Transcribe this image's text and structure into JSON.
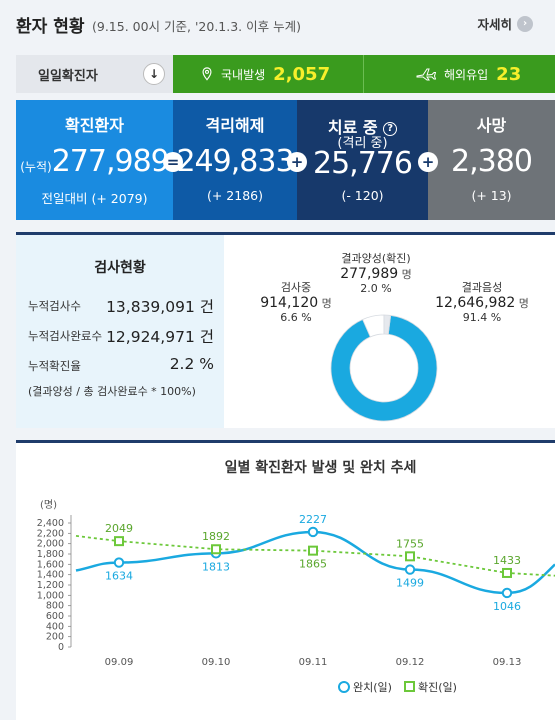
{
  "header": {
    "title": "환자 현황",
    "subtitle": "(9.15. 00시 기준, '20.1.3. 이후 누계)",
    "detail_label": "자세히"
  },
  "daily": {
    "label": "일일확진자",
    "domestic_label": "국내발생",
    "domestic_value": "2,057",
    "overseas_label": "해외유입",
    "overseas_value": "23"
  },
  "tiles": [
    {
      "label": "확진환자",
      "prefix": "(누적)",
      "value": "277,989",
      "delta": "전일대비 (+ 2079)"
    },
    {
      "label": "격리해제",
      "value": "249,833",
      "delta": "(+ 2186)"
    },
    {
      "label": "치료 중",
      "label2": "(격리 중)",
      "value": "25,776",
      "delta": "(- 120)"
    },
    {
      "label": "사망",
      "value": "2,380",
      "delta": "(+ 13)"
    }
  ],
  "operators": [
    "=",
    "+",
    "+"
  ],
  "test": {
    "title": "검사현황",
    "rows": [
      {
        "label": "누적검사수",
        "value": "13,839,091 건"
      },
      {
        "label": "누적검사완료수",
        "value": "12,924,971 건"
      },
      {
        "label": "누적확진율",
        "value": "2.2 %"
      }
    ],
    "note": "(결과양성 / 총 검사완료수 * 100%)",
    "pie": {
      "positive": {
        "label": "결과양성(확진)",
        "value": "277,989",
        "unit": "명",
        "pct": "2.0 %",
        "share": 0.02,
        "color": "#e6e9ee"
      },
      "testing": {
        "label": "검사중",
        "value": "914,120",
        "unit": "명",
        "pct": "6.6 %",
        "share": 0.066,
        "color": "#ffffff"
      },
      "negative": {
        "label": "결과음성",
        "value": "12,646,982",
        "unit": "명",
        "pct": "91.4 %",
        "share": 0.914,
        "color": "#1aa9e0"
      }
    }
  },
  "chart_title": "일별 확진환자 발생 및 완치 추세",
  "chart_data": {
    "type": "line",
    "ylabel": "(명)",
    "ylim": [
      0,
      2400
    ],
    "yticks": [
      "2,400",
      "2,200",
      "2,000",
      "1,800",
      "1,600",
      "1,400",
      "1,200",
      "1,000",
      "800",
      "600",
      "400",
      "200",
      "0"
    ],
    "categories": [
      "09.09",
      "09.10",
      "09.11",
      "09.12",
      "09.13"
    ],
    "series": [
      {
        "name": "완치(일)",
        "values": [
          1634,
          1813,
          2227,
          1499,
          1046
        ],
        "color": "#1aa9e0"
      },
      {
        "name": "확진(일)",
        "values": [
          2049,
          1892,
          1865,
          1755,
          1433
        ],
        "color": "#6cc83a"
      }
    ],
    "legend_position": "bottom-right"
  }
}
